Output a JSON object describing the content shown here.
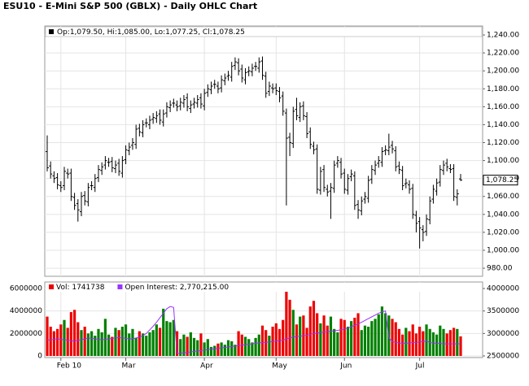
{
  "chart_data": [
    {
      "type": "ohlc",
      "title": "ESU10 - E-Mini S&P 500 (GBLX) - Daily OHLC Chart",
      "legend_text": "Op:1,079.50, Hi:1,085.00, Lo:1,077.25, Cl:1,078.25",
      "last_price_label": "1,078.25",
      "color": "#000000",
      "open": [
        1110,
        1094,
        1083,
        1081,
        1072,
        1072,
        1086,
        1086,
        1059,
        1052,
        1043,
        1061,
        1054,
        1072,
        1070,
        1081,
        1089,
        1095,
        1098,
        1099,
        1091,
        1097,
        1086,
        1101,
        1111,
        1117,
        1118,
        1136,
        1131,
        1142,
        1140,
        1146,
        1147,
        1152,
        1143,
        1153,
        1159,
        1164,
        1162,
        1161,
        1164,
        1170,
        1158,
        1163,
        1164,
        1170,
        1161,
        1176,
        1179,
        1185,
        1183,
        1181,
        1189,
        1194,
        1193,
        1206,
        1209,
        1202,
        1190,
        1199,
        1199,
        1205,
        1203,
        1211,
        1194,
        1177,
        1181,
        1181,
        1177,
        1172,
        1153,
        1126,
        1119,
        1157,
        1148,
        1161,
        1149,
        1132,
        1116,
        1113,
        1067,
        1090,
        1068,
        1066,
        1069,
        1097,
        1098,
        1086,
        1067,
        1082,
        1083,
        1051,
        1044,
        1057,
        1058,
        1079,
        1089,
        1097,
        1098,
        1111,
        1111,
        1117,
        1111,
        1094,
        1089,
        1074,
        1073,
        1069,
        1039,
        1032,
        1023,
        1021,
        1034,
        1057,
        1066,
        1076,
        1089,
        1097,
        1091,
        1091,
        1059,
        1079.5
      ],
      "high": [
        1128,
        1099,
        1088,
        1086,
        1077,
        1093,
        1091,
        1091,
        1064,
        1057,
        1065,
        1066,
        1075,
        1077,
        1085,
        1095,
        1098,
        1105,
        1103,
        1104,
        1100,
        1102,
        1105,
        1117,
        1120,
        1125,
        1140,
        1141,
        1145,
        1147,
        1150,
        1153,
        1155,
        1157,
        1157,
        1165,
        1167,
        1169,
        1167,
        1170,
        1173,
        1175,
        1167,
        1170,
        1173,
        1175,
        1180,
        1185,
        1188,
        1190,
        1188,
        1195,
        1197,
        1200,
        1210,
        1215,
        1214,
        1207,
        1203,
        1205,
        1208,
        1210,
        1215,
        1216,
        1199,
        1188,
        1186,
        1186,
        1182,
        1177,
        1158,
        1131,
        1160,
        1170,
        1165,
        1166,
        1154,
        1137,
        1121,
        1118,
        1093,
        1095,
        1073,
        1075,
        1100,
        1105,
        1103,
        1091,
        1085,
        1090,
        1088,
        1056,
        1060,
        1065,
        1083,
        1095,
        1100,
        1105,
        1115,
        1117,
        1130,
        1122,
        1116,
        1099,
        1094,
        1080,
        1078,
        1074,
        1044,
        1037,
        1028,
        1040,
        1060,
        1073,
        1080,
        1095,
        1100,
        1102,
        1096,
        1096,
        1068,
        1085
      ],
      "low": [
        1088,
        1080,
        1075,
        1068,
        1065,
        1067,
        1080,
        1055,
        1045,
        1032,
        1038,
        1050,
        1049,
        1067,
        1065,
        1076,
        1084,
        1090,
        1093,
        1087,
        1086,
        1083,
        1081,
        1096,
        1106,
        1112,
        1113,
        1127,
        1126,
        1137,
        1135,
        1141,
        1142,
        1140,
        1138,
        1148,
        1154,
        1159,
        1155,
        1156,
        1159,
        1155,
        1153,
        1158,
        1159,
        1158,
        1156,
        1171,
        1174,
        1180,
        1175,
        1176,
        1184,
        1189,
        1188,
        1201,
        1195,
        1187,
        1185,
        1194,
        1194,
        1200,
        1198,
        1190,
        1170,
        1172,
        1175,
        1173,
        1165,
        1150,
        1050,
        1105,
        1114,
        1145,
        1143,
        1145,
        1125,
        1113,
        1107,
        1063,
        1062,
        1065,
        1060,
        1035,
        1064,
        1092,
        1080,
        1063,
        1062,
        1077,
        1045,
        1035,
        1039,
        1052,
        1053,
        1074,
        1084,
        1092,
        1093,
        1106,
        1106,
        1108,
        1088,
        1085,
        1067,
        1069,
        1063,
        1035,
        1020,
        1002,
        1010,
        1016,
        1029,
        1052,
        1061,
        1071,
        1084,
        1088,
        1086,
        1055,
        1050,
        1077.25
      ],
      "close": [
        1092,
        1085,
        1080,
        1073,
        1070,
        1088,
        1085,
        1060,
        1050,
        1045,
        1060,
        1055,
        1070,
        1072,
        1080,
        1090,
        1093,
        1100,
        1098,
        1092,
        1095,
        1088,
        1100,
        1112,
        1115,
        1120,
        1135,
        1132,
        1140,
        1142,
        1145,
        1148,
        1150,
        1145,
        1152,
        1160,
        1162,
        1164,
        1160,
        1165,
        1168,
        1160,
        1162,
        1165,
        1168,
        1163,
        1175,
        1180,
        1183,
        1185,
        1180,
        1190,
        1192,
        1195,
        1205,
        1210,
        1200,
        1192,
        1198,
        1200,
        1203,
        1205,
        1210,
        1195,
        1175,
        1183,
        1180,
        1178,
        1170,
        1155,
        1125,
        1120,
        1155,
        1150,
        1160,
        1150,
        1130,
        1118,
        1112,
        1068,
        1088,
        1070,
        1065,
        1070,
        1095,
        1100,
        1085,
        1068,
        1080,
        1085,
        1050,
        1045,
        1055,
        1060,
        1078,
        1090,
        1095,
        1100,
        1110,
        1112,
        1115,
        1113,
        1093,
        1090,
        1072,
        1075,
        1068,
        1040,
        1030,
        1025,
        1020,
        1035,
        1055,
        1068,
        1075,
        1090,
        1095,
        1093,
        1090,
        1060,
        1063,
        1078.25
      ],
      "ylim": [
        971,
        1250
      ],
      "yticks": [
        {
          "value": 980,
          "label": "980.00"
        },
        {
          "value": 1000,
          "label": "1,000.00"
        },
        {
          "value": 1020,
          "label": "1,020.00"
        },
        {
          "value": 1040,
          "label": "1,040.00"
        },
        {
          "value": 1060,
          "label": "1,060.00"
        },
        {
          "value": 1080,
          "label": "1,080.00"
        },
        {
          "value": 1100,
          "label": "1,100.00"
        },
        {
          "value": 1120,
          "label": "1,120.00"
        },
        {
          "value": 1140,
          "label": "1,140.00"
        },
        {
          "value": 1160,
          "label": "1,160.00"
        },
        {
          "value": 1180,
          "label": "1,180.00"
        },
        {
          "value": 1200,
          "label": "1,200.00"
        },
        {
          "value": 1220,
          "label": "1,220.00"
        },
        {
          "value": 1240,
          "label": "1,240.00"
        }
      ],
      "grid": true
    },
    {
      "type": "bar",
      "categories": [
        null,
        null,
        null,
        null,
        "Feb 10",
        null,
        null,
        null,
        null,
        null,
        null,
        null,
        null,
        null,
        null,
        null,
        null,
        null,
        null,
        null,
        null,
        null,
        null,
        "Mar",
        null,
        null,
        null,
        null,
        null,
        null,
        null,
        null,
        null,
        null,
        null,
        null,
        null,
        null,
        null,
        null,
        null,
        null,
        null,
        null,
        null,
        null,
        "Apr",
        null,
        null,
        null,
        null,
        null,
        null,
        null,
        null,
        null,
        null,
        null,
        null,
        null,
        null,
        null,
        null,
        null,
        null,
        null,
        null,
        "May",
        null,
        null,
        null,
        null,
        null,
        null,
        null,
        null,
        null,
        null,
        null,
        null,
        null,
        null,
        null,
        null,
        null,
        null,
        null,
        "Jun",
        null,
        null,
        null,
        null,
        null,
        null,
        null,
        null,
        null,
        null,
        null,
        null,
        null,
        null,
        null,
        null,
        null,
        null,
        null,
        null,
        null,
        "Jul",
        null,
        null,
        null,
        null,
        null,
        null,
        null,
        null,
        null,
        null,
        null,
        null
      ],
      "series": [
        {
          "name": "Vol: 1741738",
          "color": "#ee0000",
          "up_color": "#008000",
          "values": [
            3500000,
            2600000,
            2200000,
            2400000,
            2800000,
            3200000,
            2500000,
            3900000,
            4100000,
            3000000,
            2300000,
            2600000,
            2000000,
            2200000,
            1800000,
            2400000,
            2100000,
            3300000,
            1900000,
            1700000,
            2500000,
            2300000,
            2600000,
            2800000,
            2000000,
            2400000,
            1600000,
            2200000,
            2000000,
            1800000,
            2100000,
            2300000,
            2800000,
            2500000,
            4200000,
            3100000,
            3000000,
            3200000,
            2200000,
            1500000,
            1900000,
            1700000,
            2100000,
            1600000,
            1400000,
            2000000,
            1200000,
            1500000,
            800000,
            900000,
            1100000,
            1200000,
            1000000,
            1400000,
            1300000,
            1000000,
            2200000,
            1900000,
            1700000,
            1500000,
            1200000,
            1600000,
            1900000,
            2700000,
            2300000,
            1800000,
            2600000,
            2900000,
            2400000,
            3200000,
            5800000,
            5000000,
            4100000,
            2800000,
            3500000,
            3600000,
            2500000,
            4400000,
            4900000,
            3800000,
            2900000,
            3600000,
            2700000,
            3500000,
            2400000,
            2100000,
            3300000,
            3200000,
            2600000,
            3100000,
            3400000,
            3800000,
            2300000,
            2700000,
            2600000,
            3100000,
            3300000,
            3700000,
            4400000,
            3800000,
            3600000,
            3300000,
            3000000,
            2400000,
            1900000,
            2500000,
            2200000,
            2800000,
            2000000,
            2600000,
            2200000,
            2800000,
            2400000,
            2100000,
            1900000,
            2700000,
            2400000,
            2000000,
            2300000,
            2500000,
            2400000,
            1741738
          ]
        },
        {
          "name": "Open Interest: 2,770,215.00",
          "type": "line",
          "axis": "y2",
          "color": "#9933ff",
          "values": [
            2850000,
            2860000,
            2870000,
            2880000,
            2870000,
            2860000,
            2850000,
            2840000,
            2830000,
            2850000,
            2860000,
            2880000,
            2900000,
            2890000,
            2880000,
            2870000,
            2860000,
            2870000,
            2880000,
            2890000,
            2900000,
            2910000,
            2900000,
            2890000,
            2880000,
            2880000,
            2900000,
            2920000,
            2950000,
            3000000,
            3080000,
            3160000,
            3250000,
            3350000,
            3450000,
            3550000,
            3600000,
            3580000,
            2550000,
            2560000,
            2570000,
            2580000,
            2590000,
            2600000,
            2610000,
            2620000,
            2630000,
            2640000,
            2650000,
            2660000,
            2670000,
            2680000,
            2690000,
            2700000,
            2710000,
            2720000,
            2730000,
            2740000,
            2750000,
            2760000,
            2770000,
            2780000,
            2790000,
            2800000,
            2800000,
            2810000,
            2820000,
            2830000,
            2840000,
            2850000,
            2880000,
            2900000,
            2920000,
            2930000,
            2940000,
            2950000,
            2960000,
            2980000,
            3000000,
            3010000,
            3020000,
            3030000,
            3040000,
            3050000,
            3060000,
            3070000,
            3080000,
            3100000,
            3120000,
            3150000,
            3180000,
            3210000,
            3250000,
            3290000,
            3330000,
            3370000,
            3410000,
            3450000,
            3480000,
            3500000,
            2900000,
            2820000,
            2800000,
            2790000,
            2780000,
            2780000,
            2790000,
            2800000,
            2800000,
            2810000,
            2820000,
            2830000,
            2800000,
            2790000,
            2780000,
            2780000,
            2770000,
            2770000,
            2770000,
            2770000,
            2770000,
            2770215
          ]
        }
      ],
      "ylim": [
        -145000,
        6580000
      ],
      "yticks": [
        0,
        2000000,
        4000000,
        6000000
      ],
      "y2lim": [
        2464000,
        4145000
      ],
      "y2ticks": [
        2500000,
        3000000,
        3500000,
        4000000
      ],
      "grid": true
    }
  ]
}
